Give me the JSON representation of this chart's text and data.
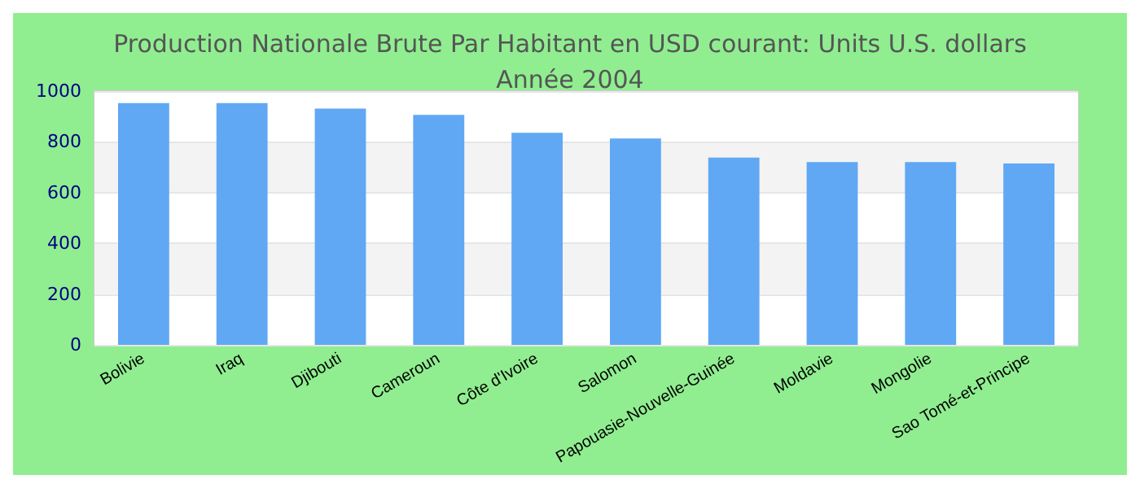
{
  "chart_data": {
    "type": "bar",
    "title": "Production Nationale Brute Par Habitant en USD courant: Units U.S. dollars",
    "subtitle": "Année 2004",
    "categories": [
      "Bolivie",
      "Iraq",
      "Djibouti",
      "Cameroun",
      "Côte d'Ivoire",
      "Salomon",
      "Papouasie-Nouvelle-Guinée",
      "Moldavie",
      "Mongolie",
      "Sao Tomé-et-Principe"
    ],
    "values": [
      953,
      953,
      931,
      906,
      836,
      813,
      738,
      720,
      720,
      715
    ],
    "color": "#60a8f4",
    "ylim": [
      0,
      1000
    ],
    "yticks": [
      0,
      200,
      400,
      600,
      800,
      1000
    ],
    "grid": true
  }
}
